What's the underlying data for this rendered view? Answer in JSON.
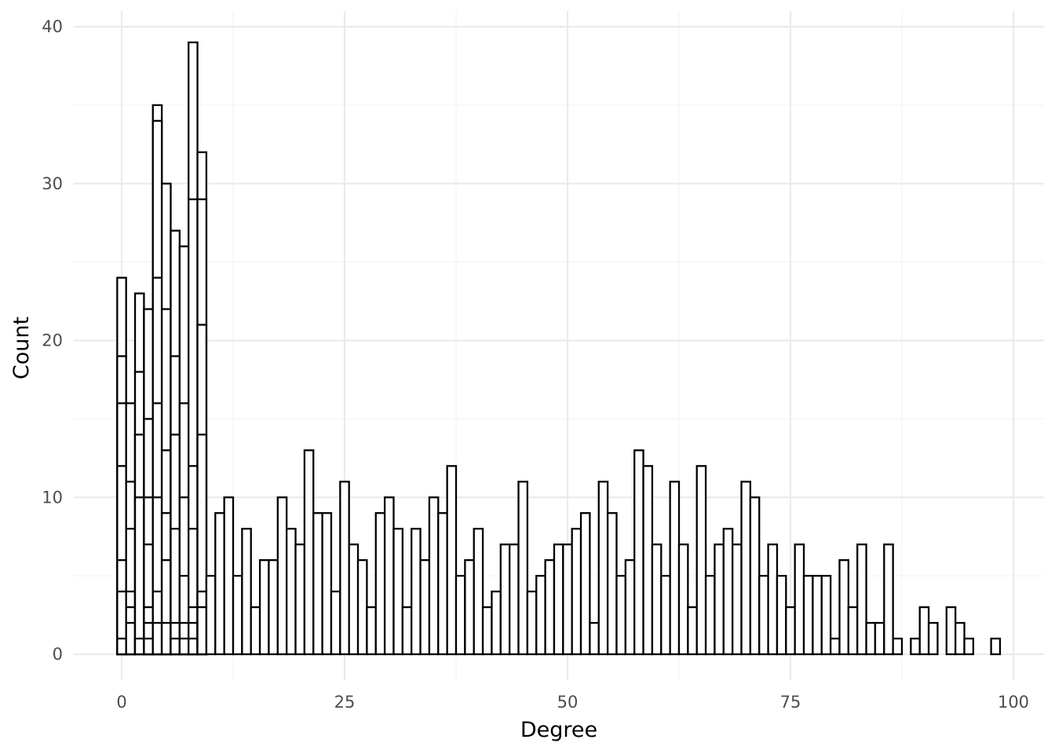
{
  "chart_data": {
    "type": "bar",
    "title": "",
    "xlabel": "Degree",
    "ylabel": "Count",
    "xlim": [
      -1,
      100.5
    ],
    "ylim": [
      0,
      40.6
    ],
    "x_ticks": [
      0,
      25,
      50,
      75,
      100
    ],
    "y_ticks": [
      0,
      10,
      20,
      30,
      40
    ],
    "grid": true,
    "bin_width": 1,
    "stacked_bins": [
      {
        "x": 0,
        "segments": [
          1,
          4,
          6,
          12,
          16,
          19,
          24
        ]
      },
      {
        "x": 1,
        "segments": [
          2,
          3,
          4,
          8,
          11,
          16
        ]
      },
      {
        "x": 2,
        "segments": [
          1,
          10,
          14,
          18,
          23
        ]
      },
      {
        "x": 3,
        "segments": [
          1,
          2,
          3,
          7,
          10,
          15,
          22
        ]
      },
      {
        "x": 4,
        "segments": [
          2,
          4,
          10,
          16,
          24,
          34,
          35
        ]
      },
      {
        "x": 5,
        "segments": [
          2,
          6,
          9,
          13,
          22,
          30
        ]
      },
      {
        "x": 6,
        "segments": [
          1,
          2,
          8,
          14,
          19,
          27
        ]
      },
      {
        "x": 7,
        "segments": [
          1,
          2,
          5,
          10,
          16,
          26
        ]
      },
      {
        "x": 8,
        "segments": [
          1,
          2,
          3,
          8,
          12,
          29,
          39
        ]
      },
      {
        "x": 9,
        "segments": [
          3,
          4,
          14,
          21,
          29,
          32
        ]
      }
    ],
    "bins": [
      {
        "x": 10,
        "count": 5
      },
      {
        "x": 11,
        "count": 9
      },
      {
        "x": 12,
        "count": 10
      },
      {
        "x": 13,
        "count": 5
      },
      {
        "x": 14,
        "count": 8
      },
      {
        "x": 15,
        "count": 3
      },
      {
        "x": 16,
        "count": 6
      },
      {
        "x": 17,
        "count": 6
      },
      {
        "x": 18,
        "count": 10
      },
      {
        "x": 19,
        "count": 8
      },
      {
        "x": 20,
        "count": 7
      },
      {
        "x": 21,
        "count": 13
      },
      {
        "x": 22,
        "count": 9
      },
      {
        "x": 23,
        "count": 9
      },
      {
        "x": 24,
        "count": 4
      },
      {
        "x": 25,
        "count": 11
      },
      {
        "x": 26,
        "count": 7
      },
      {
        "x": 27,
        "count": 6
      },
      {
        "x": 28,
        "count": 3
      },
      {
        "x": 29,
        "count": 9
      },
      {
        "x": 30,
        "count": 10
      },
      {
        "x": 31,
        "count": 8
      },
      {
        "x": 32,
        "count": 3
      },
      {
        "x": 33,
        "count": 8
      },
      {
        "x": 34,
        "count": 6
      },
      {
        "x": 35,
        "count": 10
      },
      {
        "x": 36,
        "count": 9
      },
      {
        "x": 37,
        "count": 12
      },
      {
        "x": 38,
        "count": 5
      },
      {
        "x": 39,
        "count": 6
      },
      {
        "x": 40,
        "count": 8
      },
      {
        "x": 41,
        "count": 3
      },
      {
        "x": 42,
        "count": 4
      },
      {
        "x": 43,
        "count": 7
      },
      {
        "x": 44,
        "count": 7
      },
      {
        "x": 45,
        "count": 11
      },
      {
        "x": 46,
        "count": 4
      },
      {
        "x": 47,
        "count": 5
      },
      {
        "x": 48,
        "count": 6
      },
      {
        "x": 49,
        "count": 7
      },
      {
        "x": 50,
        "count": 7
      },
      {
        "x": 51,
        "count": 8
      },
      {
        "x": 52,
        "count": 9
      },
      {
        "x": 53,
        "count": 2
      },
      {
        "x": 54,
        "count": 11
      },
      {
        "x": 55,
        "count": 9
      },
      {
        "x": 56,
        "count": 5
      },
      {
        "x": 57,
        "count": 6
      },
      {
        "x": 58,
        "count": 13
      },
      {
        "x": 59,
        "count": 12
      },
      {
        "x": 60,
        "count": 7
      },
      {
        "x": 61,
        "count": 5
      },
      {
        "x": 62,
        "count": 11
      },
      {
        "x": 63,
        "count": 7
      },
      {
        "x": 64,
        "count": 3
      },
      {
        "x": 65,
        "count": 12
      },
      {
        "x": 66,
        "count": 5
      },
      {
        "x": 67,
        "count": 7
      },
      {
        "x": 68,
        "count": 8
      },
      {
        "x": 69,
        "count": 7
      },
      {
        "x": 70,
        "count": 11
      },
      {
        "x": 71,
        "count": 10
      },
      {
        "x": 72,
        "count": 5
      },
      {
        "x": 73,
        "count": 7
      },
      {
        "x": 74,
        "count": 5
      },
      {
        "x": 75,
        "count": 3
      },
      {
        "x": 76,
        "count": 7
      },
      {
        "x": 77,
        "count": 5
      },
      {
        "x": 78,
        "count": 5
      },
      {
        "x": 79,
        "count": 5
      },
      {
        "x": 80,
        "count": 1
      },
      {
        "x": 81,
        "count": 6
      },
      {
        "x": 82,
        "count": 3
      },
      {
        "x": 83,
        "count": 7
      },
      {
        "x": 84,
        "count": 2
      },
      {
        "x": 85,
        "count": 2
      },
      {
        "x": 86,
        "count": 7
      },
      {
        "x": 87,
        "count": 1
      },
      {
        "x": 89,
        "count": 1
      },
      {
        "x": 90,
        "count": 3
      },
      {
        "x": 91,
        "count": 2
      },
      {
        "x": 93,
        "count": 3
      },
      {
        "x": 94,
        "count": 2
      },
      {
        "x": 95,
        "count": 1
      },
      {
        "x": 98,
        "count": 1
      }
    ]
  }
}
